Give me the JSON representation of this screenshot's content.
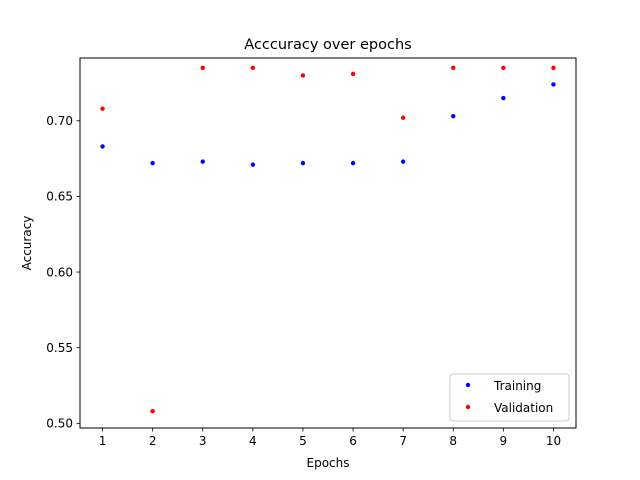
{
  "chart_data": {
    "type": "scatter",
    "title": "Acccuracy over epochs",
    "xlabel": "Epochs",
    "ylabel": "Accuracy",
    "x": [
      1,
      2,
      3,
      4,
      5,
      6,
      7,
      8,
      9,
      10
    ],
    "xticks": [
      "1",
      "2",
      "3",
      "4",
      "5",
      "6",
      "7",
      "8",
      "9",
      "10"
    ],
    "yticks": [
      "0.50",
      "0.55",
      "0.60",
      "0.65",
      "0.70"
    ],
    "ytick_values": [
      0.5,
      0.55,
      0.6,
      0.65,
      0.7
    ],
    "xlim": [
      0.55,
      10.45
    ],
    "ylim": [
      0.4969,
      0.7415
    ],
    "grid": false,
    "legend_position": "lower-right",
    "series": [
      {
        "name": "Training",
        "color": "#0000ff",
        "values": [
          0.683,
          0.672,
          0.673,
          0.671,
          0.672,
          0.672,
          0.673,
          0.703,
          0.715,
          0.724
        ]
      },
      {
        "name": "Validation",
        "color": "#ff0000",
        "values": [
          0.708,
          0.508,
          0.735,
          0.735,
          0.73,
          0.731,
          0.702,
          0.735,
          0.735,
          0.735
        ]
      }
    ]
  }
}
